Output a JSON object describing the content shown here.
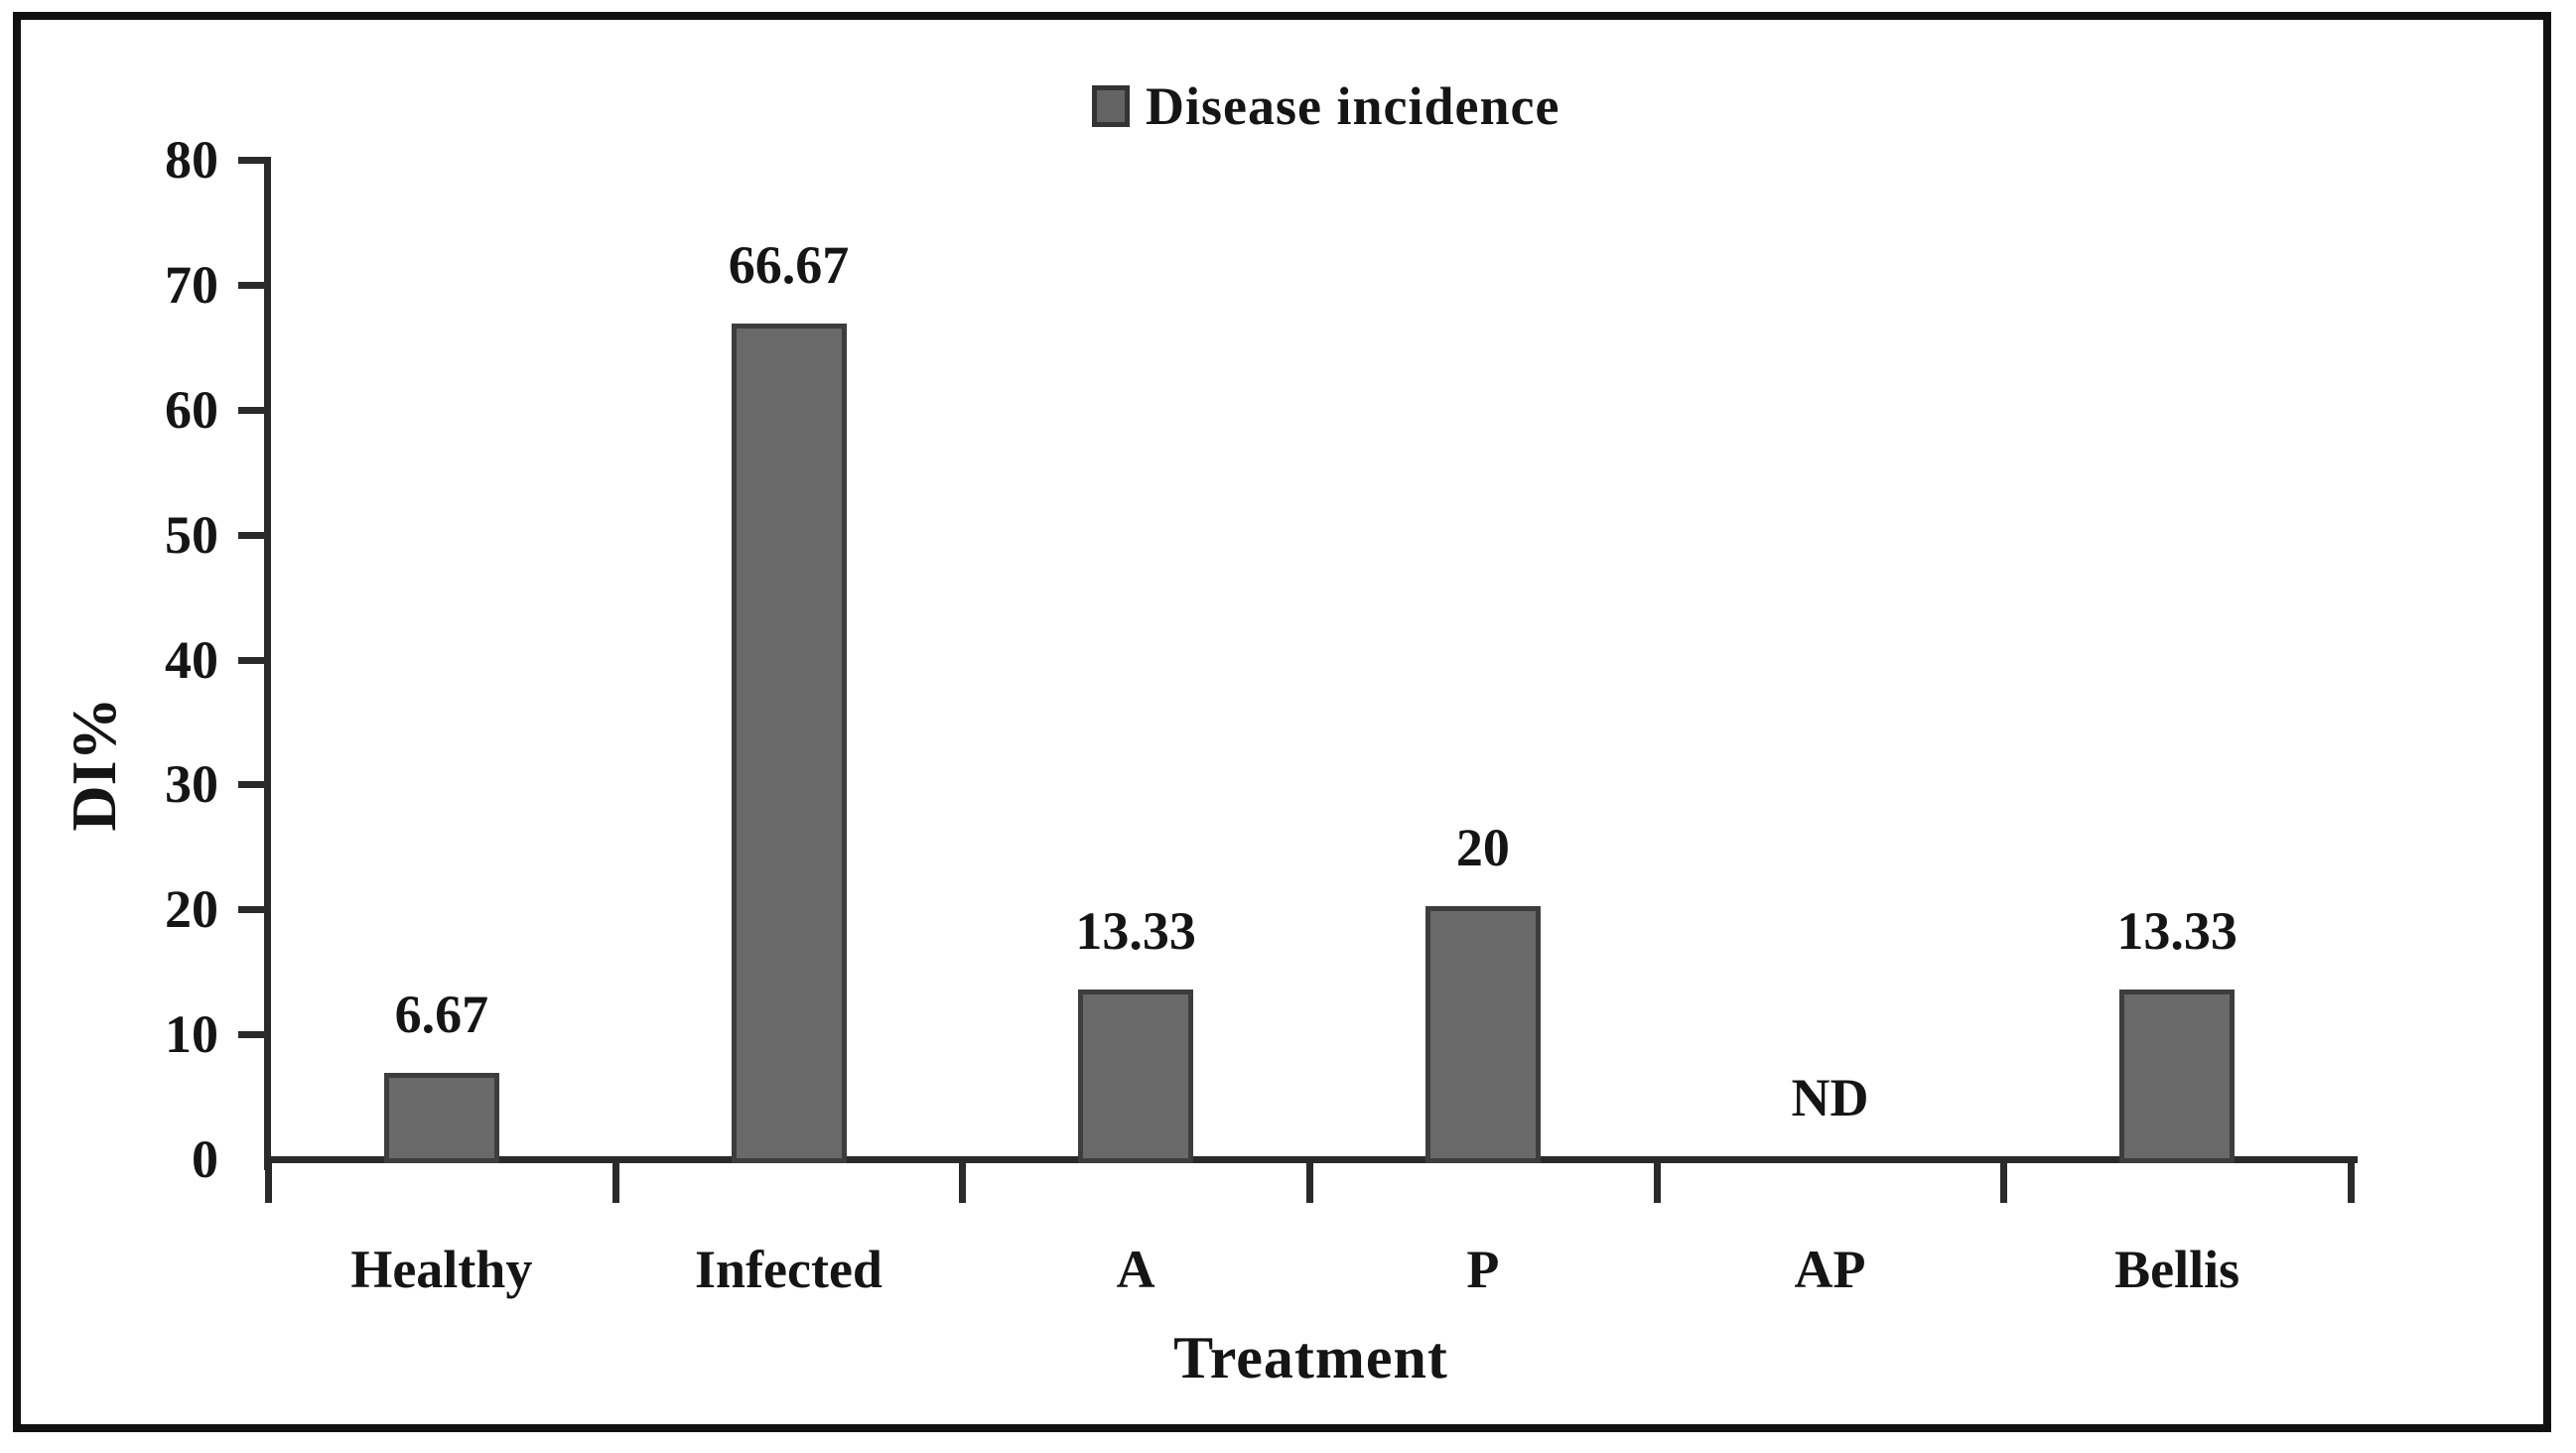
{
  "figure": {
    "background_color": "#ffffff",
    "frame_color": "#111111",
    "axis_color": "#2a2a2a",
    "text_color": "#151515"
  },
  "chart_data": {
    "type": "bar",
    "title": "",
    "categories": [
      "Healthy",
      "Infected",
      "A",
      "P",
      "AP",
      "Bellis"
    ],
    "series": [
      {
        "name": "Disease incidence",
        "values": [
          6.67,
          66.67,
          13.33,
          20,
          null,
          13.33
        ],
        "data_labels": [
          "6.67",
          "66.67",
          "13.33",
          "20",
          "ND",
          "13.33"
        ]
      }
    ],
    "xlabel": "Treatment",
    "ylabel": "DI%",
    "ylim": [
      0,
      80
    ],
    "yticks": [
      0,
      10,
      20,
      30,
      40,
      50,
      60,
      70,
      80
    ],
    "grid": false,
    "legend_position": "top-center",
    "bar_color": "#696969",
    "bar_border_color": "#3d3d3d",
    "no_data_label": "ND"
  }
}
